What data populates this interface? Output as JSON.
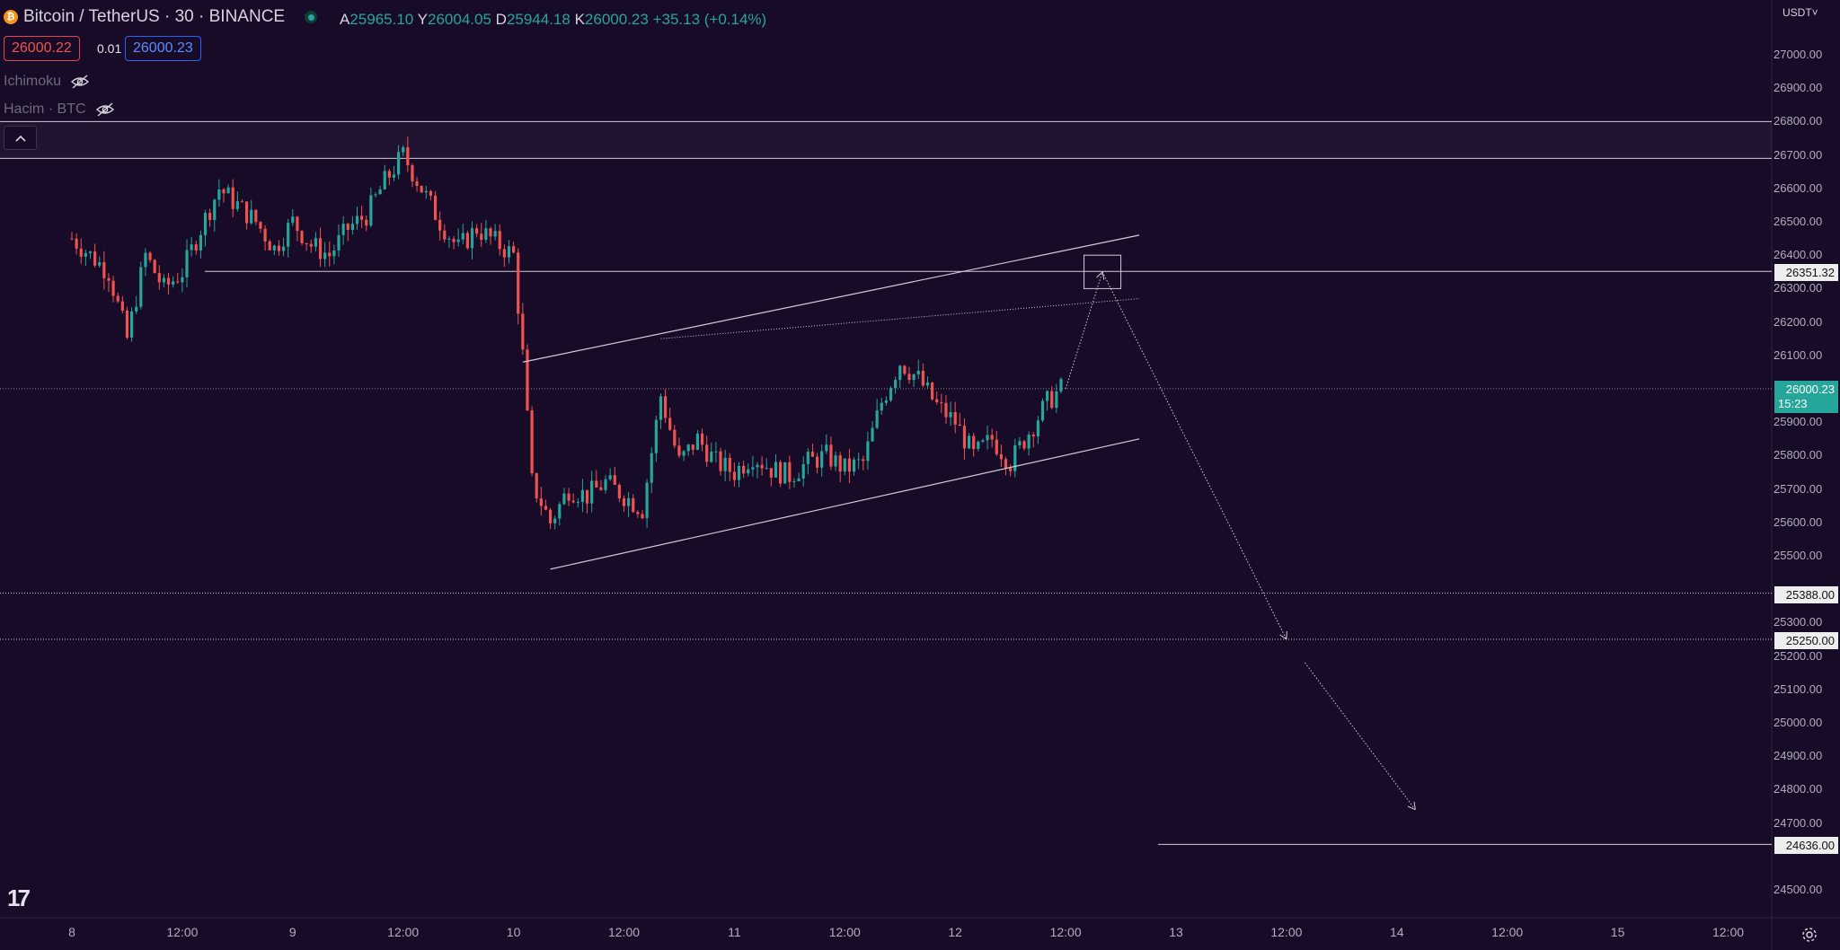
{
  "symbol": {
    "title": "Bitcoin / TetherUS · 30 · BINANCE",
    "icon": "bitcoin-icon"
  },
  "ohlc": {
    "open_label": "A",
    "open": "25965.10",
    "high_label": "Y",
    "high": "26004.05",
    "low_label": "D",
    "low": "25944.18",
    "close_label": "K",
    "close": "26000.23",
    "change": "+35.13 (+0.14%)"
  },
  "trade": {
    "sell": "26000.22",
    "spread": "0.01",
    "buy": "26000.23"
  },
  "indicators": [
    {
      "name": "Ichimoku",
      "icon": "eye-hidden-icon"
    },
    {
      "name": "Hacim · BTC",
      "icon": "eye-hidden-icon"
    }
  ],
  "currency": "USDT˅",
  "price_axis": [
    "27000.00",
    "26900.00",
    "26800.00",
    "26700.00",
    "26600.00",
    "26500.00",
    "26400.00",
    "26300.00",
    "26200.00",
    "26100.00",
    "25900.00",
    "25800.00",
    "25700.00",
    "25600.00",
    "25500.00",
    "25300.00",
    "25200.00",
    "25100.00",
    "25000.00",
    "24900.00",
    "24800.00",
    "24700.00",
    "24500.00"
  ],
  "price_badges": {
    "resistance": "26351.32",
    "last_price": "26000.23",
    "countdown": "15:23",
    "support_1": "25388.00",
    "support_2": "25250.00",
    "target": "24636.00"
  },
  "time_axis": [
    "8",
    "12:00",
    "9",
    "12:00",
    "10",
    "12:00",
    "11",
    "12:00",
    "12",
    "12:00",
    "13",
    "12:00",
    "14",
    "12:00",
    "15",
    "12:00"
  ],
  "colors": {
    "background": "#170b28",
    "up": "#26a69a",
    "down": "#ef5350",
    "drawing": "#d0ccd8",
    "accent_blue": "#2962ff"
  },
  "chart_data": {
    "type": "candlestick",
    "price_range": [
      24450,
      27100
    ],
    "x_labels": [
      "8",
      "12:00",
      "9",
      "12:00",
      "10",
      "12:00",
      "11",
      "12:00",
      "12",
      "12:00",
      "13",
      "12:00",
      "14",
      "12:00",
      "15",
      "12:00"
    ],
    "levels": [
      26800,
      26690,
      26351.32,
      26000.23,
      25388,
      25250,
      24636
    ],
    "series_points": [
      [
        "8 00:00",
        26450
      ],
      [
        "8 04:00",
        26350
      ],
      [
        "8 06:00",
        26150
      ],
      [
        "8 08:00",
        26400
      ],
      [
        "8 10:00",
        26300
      ],
      [
        "8 12:00",
        26350
      ],
      [
        "8 14:00",
        26480
      ],
      [
        "8 16:00",
        26600
      ],
      [
        "8 18:00",
        26550
      ],
      [
        "8 20:00",
        26500
      ],
      [
        "8 22:00",
        26420
      ],
      [
        "9 00:00",
        26500
      ],
      [
        "9 02:00",
        26430
      ],
      [
        "9 04:00",
        26400
      ],
      [
        "9 06:00",
        26480
      ],
      [
        "9 08:00",
        26520
      ],
      [
        "9 10:00",
        26620
      ],
      [
        "9 12:00",
        26700
      ],
      [
        "9 14:00",
        26600
      ],
      [
        "9 16:00",
        26500
      ],
      [
        "9 18:00",
        26420
      ],
      [
        "9 20:00",
        26480
      ],
      [
        "9 22:00",
        26440
      ],
      [
        "10 00:00",
        26400
      ],
      [
        "10 01:00",
        26100
      ],
      [
        "10 02:00",
        25720
      ],
      [
        "10 04:00",
        25600
      ],
      [
        "10 06:00",
        25700
      ],
      [
        "10 08:00",
        25680
      ],
      [
        "10 10:00",
        25720
      ],
      [
        "10 12:00",
        25680
      ],
      [
        "10 14:00",
        25640
      ],
      [
        "10 16:00",
        25980
      ],
      [
        "10 18:00",
        25780
      ],
      [
        "10 20:00",
        25850
      ],
      [
        "10 22:00",
        25780
      ],
      [
        "11 00:00",
        25750
      ],
      [
        "11 02:00",
        25800
      ],
      [
        "11 04:00",
        25760
      ],
      [
        "11 06:00",
        25740
      ],
      [
        "11 08:00",
        25780
      ],
      [
        "11 10:00",
        25800
      ],
      [
        "11 12:00",
        25760
      ],
      [
        "11 14:00",
        25780
      ],
      [
        "11 16:00",
        25960
      ],
      [
        "11 18:00",
        26080
      ],
      [
        "11 20:00",
        26030
      ],
      [
        "11 22:00",
        25950
      ],
      [
        "12 00:00",
        25900
      ],
      [
        "12 02:00",
        25800
      ],
      [
        "12 04:00",
        25850
      ],
      [
        "12 06:00",
        25780
      ],
      [
        "12 08:00",
        25870
      ],
      [
        "12 10:00",
        25960
      ],
      [
        "12 11:30",
        26000
      ]
    ],
    "trend_channel": {
      "upper": [
        [
          "10 01:00",
          26080
        ],
        [
          "12 20:00",
          26460
        ]
      ],
      "lower": [
        [
          "10 04:00",
          25460
        ],
        [
          "12 20:00",
          25850
        ]
      ]
    },
    "projection": [
      {
        "from": [
          "12 12:00",
          26000
        ],
        "to": [
          "12 16:00",
          26350
        ]
      },
      {
        "from": [
          "12 16:00",
          26350
        ],
        "to": [
          "13 12:00",
          25250
        ]
      },
      {
        "from": [
          "13 14:00",
          25180
        ],
        "to": [
          "14 02:00",
          24740
        ]
      }
    ],
    "target_zone": {
      "x": [
        "12 14:00",
        "12 18:00"
      ],
      "y": [
        26300,
        26400
      ]
    }
  }
}
